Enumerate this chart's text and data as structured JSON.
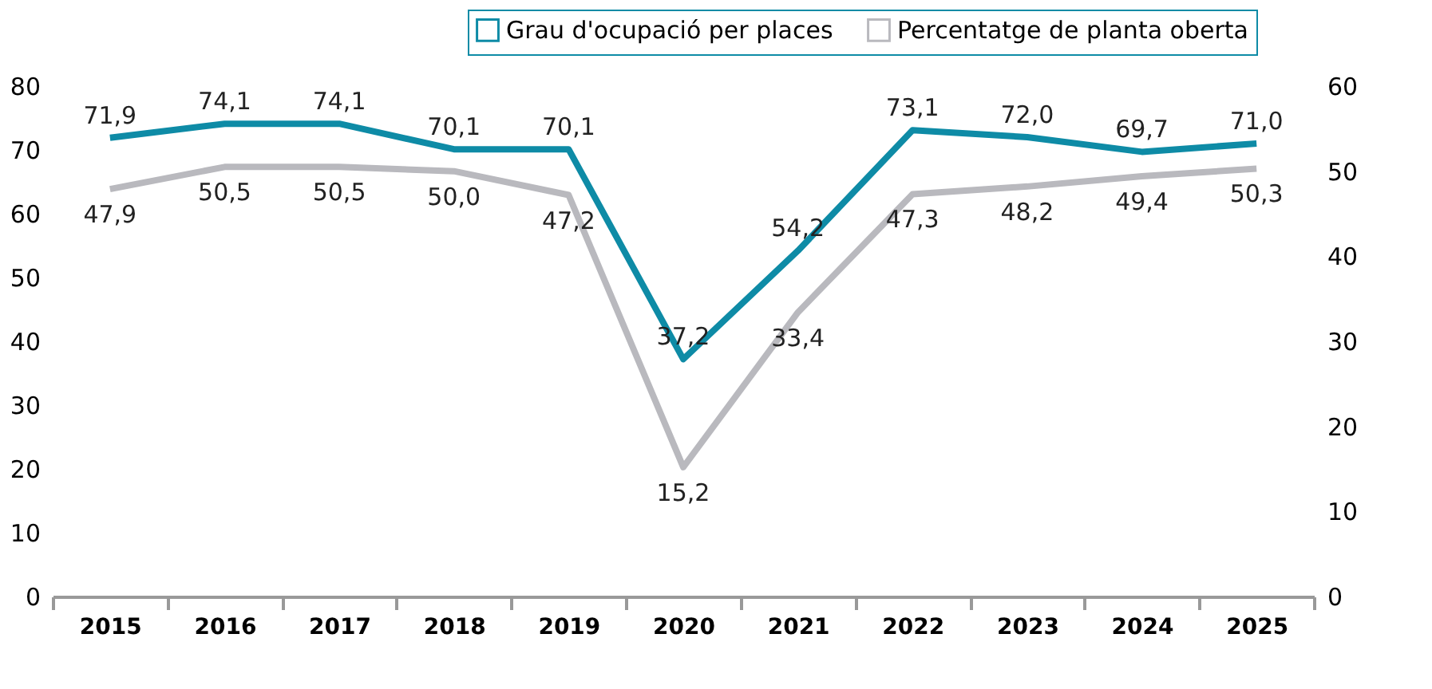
{
  "chart_data": {
    "type": "line",
    "categories": [
      "2015",
      "2016",
      "2017",
      "2018",
      "2019",
      "2020",
      "2021",
      "2022",
      "2023",
      "2024",
      "2025"
    ],
    "series": [
      {
        "name": "Grau d'ocupació per places",
        "color": "#0e8ba6",
        "axis": "y",
        "values": [
          71.9,
          74.1,
          74.1,
          70.1,
          70.1,
          37.2,
          54.2,
          73.1,
          72.0,
          69.7,
          71.0
        ],
        "value_labels": [
          "71,9",
          "74,1",
          "74,1",
          "70,1",
          "70,1",
          "37,2",
          "54,2",
          "73,1",
          "72,0",
          "69,7",
          "71,0"
        ]
      },
      {
        "name": "Percentatge de planta oberta",
        "color": "#b9b9be",
        "axis": "y2",
        "values": [
          47.9,
          50.5,
          50.5,
          50.0,
          47.2,
          15.2,
          33.4,
          47.3,
          48.2,
          49.4,
          50.3
        ],
        "value_labels": [
          "47,9",
          "50,5",
          "50,5",
          "50,0",
          "47,2",
          "15,2",
          "33,4",
          "47,3",
          "48,2",
          "49,4",
          "50,3"
        ]
      }
    ],
    "ylim": [
      0,
      80
    ],
    "yticks": [
      0,
      10,
      20,
      30,
      40,
      50,
      60,
      70,
      80
    ],
    "y2lim": [
      0,
      60
    ],
    "y2ticks": [
      0,
      10,
      20,
      30,
      40,
      50,
      60
    ],
    "legend": "top right",
    "grid": false
  }
}
